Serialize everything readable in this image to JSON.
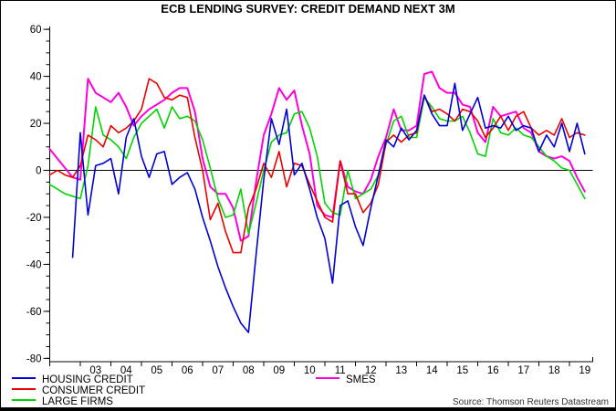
{
  "window": {
    "title": "ECB LENDING SURVEY: CREDIT DEMAND NEXT 3M"
  },
  "source": {
    "text": "Source: Thomson Reuters Datastream"
  },
  "legend": {
    "items": [
      {
        "label": "HOUSING CREDIT",
        "color": "#0000d8"
      },
      {
        "label": "CONSUMER CREDIT",
        "color": "#ee0000"
      },
      {
        "label": "LARGE FIRMS",
        "color": "#00d500"
      },
      {
        "label": "SMES",
        "color": "#ff00dd"
      }
    ]
  },
  "chart_data": {
    "type": "line",
    "title": "ECB LENDING SURVEY: CREDIT DEMAND NEXT 3M",
    "xlabel": "",
    "ylabel": "",
    "frequency": "quarterly",
    "x_start": "2002Q1",
    "x_end": "2019Q3",
    "x_tick_years": [
      "03",
      "04",
      "05",
      "06",
      "07",
      "08",
      "09",
      "10",
      "11",
      "12",
      "13",
      "14",
      "15",
      "16",
      "17",
      "18",
      "19"
    ],
    "ylim": [
      -80,
      60
    ],
    "y_major_ticks": [
      60,
      40,
      20,
      0,
      -20,
      -40,
      -60,
      -80
    ],
    "y_minor_tick_step": 5,
    "zero_line": true,
    "grid": false,
    "legend_position": "bottom-left",
    "series": [
      {
        "name": "HOUSING CREDIT",
        "color": "#0000d8",
        "values": [
          null,
          null,
          null,
          -37,
          16,
          -19,
          2,
          3,
          5,
          -10,
          14,
          22,
          6,
          -3,
          7,
          8,
          -6,
          -3,
          -1,
          -8,
          -20,
          -30,
          -41,
          -50,
          -58,
          -65,
          -69,
          -36,
          -4,
          22,
          11,
          26,
          -2,
          3,
          -8,
          -20,
          -29,
          -48,
          -15,
          -13,
          -24,
          -32,
          -16,
          -2,
          13,
          10,
          18,
          13,
          17,
          32,
          24,
          19,
          19,
          37,
          17,
          24,
          31,
          18,
          19,
          18,
          23,
          17,
          19,
          18,
          8,
          15,
          10,
          20,
          8,
          20,
          7
        ]
      },
      {
        "name": "CONSUMER CREDIT",
        "color": "#ee0000",
        "values": [
          -2,
          0,
          -2,
          -3,
          2,
          15,
          13,
          10,
          19,
          16,
          18,
          21,
          26,
          39,
          37,
          31,
          30,
          32,
          31,
          14,
          0,
          -21,
          -14,
          -26,
          -35,
          -35,
          -16,
          -8,
          3,
          -3,
          8,
          -7,
          3,
          2,
          -6,
          -13,
          -20,
          -22,
          4,
          -10,
          -10,
          -18,
          -14,
          -6,
          12,
          15,
          12,
          15,
          16,
          32,
          25,
          26,
          24,
          21,
          26,
          25,
          21,
          14,
          18,
          23,
          17,
          23,
          25,
          18,
          15,
          17,
          15,
          22,
          14,
          16,
          15
        ]
      },
      {
        "name": "LARGE FIRMS",
        "color": "#00d500",
        "values": [
          -6,
          -8,
          -10,
          -11,
          -12,
          2,
          27,
          15,
          13,
          10,
          5,
          14,
          20,
          23,
          26,
          18,
          27,
          22,
          23,
          21,
          13,
          1,
          -12,
          -20,
          -19,
          -8,
          -27,
          -14,
          0,
          12,
          15,
          16,
          24,
          25,
          18,
          6,
          -14,
          -18,
          -19,
          0,
          -12,
          -10,
          -8,
          -2,
          11,
          21,
          23,
          14,
          14,
          31,
          27,
          22,
          21,
          21,
          23,
          16,
          7,
          6,
          22,
          16,
          15,
          18,
          15,
          14,
          10,
          6,
          4,
          1,
          0,
          -6,
          -12
        ]
      },
      {
        "name": "SMES",
        "color": "#ff00dd",
        "values": [
          9,
          5,
          1,
          -3,
          -4,
          39,
          33,
          31,
          29,
          33,
          27,
          19,
          23,
          26,
          28,
          30,
          33,
          35,
          35,
          25,
          5,
          -7,
          -10,
          -10,
          -16,
          -30,
          -28,
          -5,
          15,
          24,
          35,
          30,
          34,
          19,
          7,
          -15,
          -19,
          -20,
          4,
          -7,
          -9,
          -10,
          -4,
          6,
          14,
          26,
          17,
          17,
          19,
          41,
          42,
          35,
          33,
          33,
          28,
          27,
          16,
          12,
          27,
          23,
          24,
          25,
          18,
          16,
          8,
          6,
          5,
          6,
          4,
          -3,
          -9
        ]
      }
    ]
  }
}
